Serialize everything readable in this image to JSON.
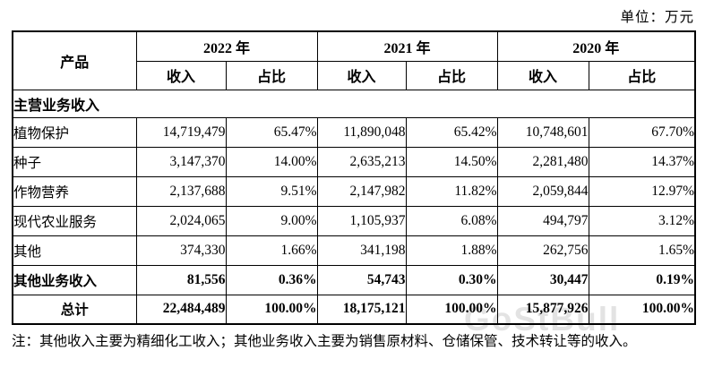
{
  "page": {
    "unit_label": "单位：万元"
  },
  "table": {
    "product_header": "产品",
    "year_headers": [
      "2022 年",
      "2021 年",
      "2020 年"
    ],
    "sub_headers": {
      "revenue": "收入",
      "share": "占比"
    },
    "section_header": "主营业务收入",
    "rows": [
      {
        "label": "植物保护",
        "values": [
          "14,719,479",
          "65.47%",
          "11,890,048",
          "65.42%",
          "10,748,601",
          "67.70%"
        ],
        "bold": false,
        "center": false
      },
      {
        "label": "种子",
        "values": [
          "3,147,370",
          "14.00%",
          "2,635,213",
          "14.50%",
          "2,281,480",
          "14.37%"
        ],
        "bold": false,
        "center": false
      },
      {
        "label": "作物营养",
        "values": [
          "2,137,688",
          "9.51%",
          "2,147,982",
          "11.82%",
          "2,059,844",
          "12.97%"
        ],
        "bold": false,
        "center": false
      },
      {
        "label": "现代农业服务",
        "values": [
          "2,024,065",
          "9.00%",
          "1,105,937",
          "6.08%",
          "494,797",
          "3.12%"
        ],
        "bold": false,
        "center": false
      },
      {
        "label": "其他",
        "values": [
          "374,330",
          "1.66%",
          "341,198",
          "1.88%",
          "262,756",
          "1.65%"
        ],
        "bold": false,
        "center": false
      },
      {
        "label": "其他业务收入",
        "values": [
          "81,556",
          "0.36%",
          "54,743",
          "0.30%",
          "30,447",
          "0.19%"
        ],
        "bold": true,
        "center": false
      },
      {
        "label": "总计",
        "values": [
          "22,484,489",
          "100.00%",
          "18,175,121",
          "100.00%",
          "15,877,926",
          "100.00%"
        ],
        "bold": true,
        "center": true
      }
    ]
  },
  "footnote": "注：其他收入主要为精细化工收入；其他业务收入主要为销售原材料、仓储保管、技术转让等的收入。",
  "watermark": {
    "text": "GoStBull"
  }
}
